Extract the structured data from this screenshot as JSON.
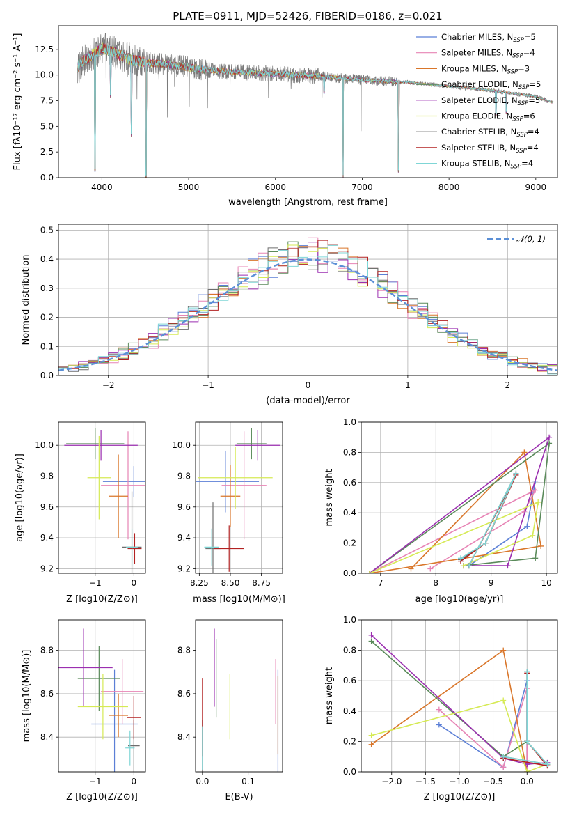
{
  "chart_data": [
    {
      "id": "spectrum",
      "type": "line",
      "title": "PLATE=0911, MJD=52426, FIBERID=0186, z=0.021",
      "xlabel": "wavelength [Angstrom, rest frame]",
      "ylabel": "Flux [fλ10⁻¹⁷ erg cm⁻² s⁻¹ A⁻¹]",
      "xlim": [
        3500,
        9250
      ],
      "ylim": [
        0,
        14.8
      ],
      "xticks": [
        "4000",
        "5000",
        "6000",
        "7000",
        "8000",
        "9000"
      ],
      "yticks": [
        "0.0",
        "2.5",
        "5.0",
        "7.5",
        "10.0",
        "12.5"
      ],
      "legend_position": "top-right",
      "continuum": [
        [
          3720,
          10.8
        ],
        [
          3800,
          11.5
        ],
        [
          3900,
          12.0
        ],
        [
          4000,
          12.6
        ],
        [
          4100,
          12.4
        ],
        [
          4300,
          11.6
        ],
        [
          4500,
          11.2
        ],
        [
          4800,
          11.0
        ],
        [
          5100,
          10.6
        ],
        [
          5500,
          10.3
        ],
        [
          6000,
          10.1
        ],
        [
          6500,
          9.9
        ],
        [
          7000,
          9.5
        ],
        [
          7500,
          9.3
        ],
        [
          8000,
          8.9
        ],
        [
          8500,
          8.5
        ],
        [
          9000,
          7.9
        ],
        [
          9200,
          7.3
        ]
      ],
      "dips": [
        [
          4510,
          0
        ],
        [
          6780,
          0
        ],
        [
          7420,
          0.5
        ],
        [
          3920,
          0.6
        ],
        [
          4340,
          4.0
        ],
        [
          4100,
          7.8
        ],
        [
          6560,
          8.2
        ],
        [
          8542,
          6.0
        ],
        [
          8662,
          6.2
        ]
      ],
      "series": [
        {
          "name": "Chabrier MILES, N_SSP=5",
          "legend": [
            "Chabrier MILES, N",
            "SSP",
            "=5"
          ],
          "color": "#5b7fd6"
        },
        {
          "name": "Salpeter MILES, N_SSP=4",
          "legend": [
            "Salpeter MILES, N",
            "SSP",
            "=4"
          ],
          "color": "#e784b5"
        },
        {
          "name": "Kroupa MILES, N_SSP=3",
          "legend": [
            "Kroupa MILES, N",
            "SSP",
            "=3"
          ],
          "color": "#d9762a"
        },
        {
          "name": "Chabrier ELODIE, N_SSP=5",
          "legend": [
            "Chabrier ELODIE, N",
            "SSP",
            "=5"
          ],
          "color": "#5a8a5a"
        },
        {
          "name": "Salpeter ELODIE, N_SSP=5",
          "legend": [
            "Salpeter ELODIE, N",
            "SSP",
            "=5"
          ],
          "color": "#9b2fb0"
        },
        {
          "name": "Kroupa ELODIE, N_SSP=6",
          "legend": [
            "Kroupa ELODIE, N",
            "SSP",
            "=6"
          ],
          "color": "#d6ea55"
        },
        {
          "name": "Chabrier STELIB, N_SSP=4",
          "legend": [
            "Chabrier STELIB, N",
            "SSP",
            "=4"
          ],
          "color": "#6e6e6e"
        },
        {
          "name": "Salpeter STELIB, N_SSP=4",
          "legend": [
            "Salpeter STELIB, N",
            "SSP",
            "=4"
          ],
          "color": "#b22222"
        },
        {
          "name": "Kroupa STELIB, N_SSP=4",
          "legend": [
            "Kroupa STELIB, N",
            "SSP",
            "=4"
          ],
          "color": "#7fd6d6"
        }
      ]
    },
    {
      "id": "residuals",
      "type": "line",
      "xlabel": "(data-model)/error",
      "ylabel": "Normed distribution",
      "xlim": [
        -2.5,
        2.5
      ],
      "ylim": [
        0,
        0.52
      ],
      "xticks": [
        "−2",
        "−1",
        "0",
        "1",
        "2"
      ],
      "yticks": [
        "0.0",
        "0.1",
        "0.2",
        "0.3",
        "0.4",
        "0.5"
      ],
      "legend": "𝒩(0, 1)",
      "legend_position": "top-right",
      "grid": true,
      "bin_width": 0.1,
      "gauss_color": "#5b8fd6"
    },
    {
      "id": "age-vs-Z",
      "type": "scatter",
      "xlabel": "Z [log10(Z/Z⊙)]",
      "ylabel": "age [log10(age/yr)]",
      "xlim": [
        -1.95,
        0.3
      ],
      "ylim": [
        9.17,
        10.15
      ],
      "xticks": [
        "−1",
        "0"
      ],
      "yticks": [
        "9.2",
        "9.4",
        "9.6",
        "9.8",
        "10.0"
      ],
      "grid": true,
      "points": [
        {
          "x": 0.0,
          "y": 9.765,
          "xerr": 0.8,
          "yerr": 0.1,
          "c": 0
        },
        {
          "x": -0.15,
          "y": 9.74,
          "xerr": 0.7,
          "yerr": 0.35,
          "c": 1
        },
        {
          "x": -0.4,
          "y": 9.67,
          "xerr": 0.25,
          "yerr": 0.27,
          "c": 2
        },
        {
          "x": -1.0,
          "y": 10.01,
          "xerr": 0.75,
          "yerr": 0.1,
          "c": 3
        },
        {
          "x": -0.85,
          "y": 10.0,
          "xerr": 0.95,
          "yerr": 0.1,
          "c": 4
        },
        {
          "x": -0.9,
          "y": 9.79,
          "xerr": 0.3,
          "yerr": 0.27,
          "c": 5
        },
        {
          "x": -0.05,
          "y": 9.34,
          "xerr": 0.25,
          "yerr": 0.36,
          "c": 6
        },
        {
          "x": 0.02,
          "y": 9.33,
          "xerr": 0.18,
          "yerr": 0.1,
          "c": 7
        },
        {
          "x": -0.05,
          "y": 9.34,
          "xerr": 0.15,
          "yerr": 0.12,
          "c": 8
        }
      ]
    },
    {
      "id": "age-vs-mass",
      "type": "scatter",
      "xlabel": "mass [log10(M/M⊙)]",
      "xlim": [
        8.22,
        8.92
      ],
      "ylim": [
        9.17,
        10.15
      ],
      "xticks": [
        "8.25",
        "8.50",
        "8.75"
      ],
      "yticks": [
        "9.2",
        "9.4",
        "9.6",
        "9.8",
        "10.0"
      ],
      "grid": true,
      "points": [
        {
          "x": 8.46,
          "y": 9.765,
          "xerr": 0.27,
          "yerr": 0.2,
          "c": 0
        },
        {
          "x": 8.61,
          "y": 9.74,
          "xerr": 0.18,
          "yerr": 0.35,
          "c": 1
        },
        {
          "x": 8.5,
          "y": 9.67,
          "xerr": 0.08,
          "yerr": 0.2,
          "c": 2
        },
        {
          "x": 8.67,
          "y": 10.01,
          "xerr": 0.12,
          "yerr": 0.1,
          "c": 3
        },
        {
          "x": 8.72,
          "y": 10.0,
          "xerr": 0.18,
          "yerr": 0.1,
          "c": 4
        },
        {
          "x": 8.54,
          "y": 9.79,
          "xerr": 0.3,
          "yerr": 0.2,
          "c": 5
        },
        {
          "x": 8.36,
          "y": 9.33,
          "xerr": 0.06,
          "yerr": 0.3,
          "c": 6
        },
        {
          "x": 8.49,
          "y": 9.33,
          "xerr": 0.12,
          "yerr": 0.15,
          "c": 7
        },
        {
          "x": 8.35,
          "y": 9.34,
          "xerr": 0.06,
          "yerr": 0.12,
          "c": 8
        }
      ]
    },
    {
      "id": "weight-vs-age",
      "type": "line",
      "xlabel": "age [log10(age/yr)]",
      "ylabel": "mass weight",
      "xlim": [
        6.65,
        10.2
      ],
      "ylim": [
        0,
        1.0
      ],
      "xticks": [
        "7",
        "8",
        "9",
        "10"
      ],
      "yticks": [
        "0.0",
        "0.2",
        "0.4",
        "0.6",
        "0.8",
        "1.0"
      ],
      "grid": true,
      "series": [
        {
          "c": 0,
          "points": [
            [
              8.6,
              0.05
            ],
            [
              9.65,
              0.31
            ],
            [
              9.8,
              0.61
            ]
          ]
        },
        {
          "c": 1,
          "points": [
            [
              7.9,
              0.03
            ],
            [
              9.6,
              0.41
            ],
            [
              9.8,
              0.55
            ],
            [
              6.8,
              0.0
            ]
          ]
        },
        {
          "c": 2,
          "points": [
            [
              7.55,
              0.03
            ],
            [
              9.6,
              0.8
            ],
            [
              9.9,
              0.18
            ],
            [
              6.8,
              0.0
            ]
          ]
        },
        {
          "c": 3,
          "points": [
            [
              8.5,
              0.05
            ],
            [
              9.8,
              0.1
            ],
            [
              10.05,
              0.86
            ],
            [
              6.8,
              0.0
            ]
          ]
        },
        {
          "c": 4,
          "points": [
            [
              8.5,
              0.05
            ],
            [
              9.3,
              0.05
            ],
            [
              10.05,
              0.9
            ],
            [
              6.8,
              0.0
            ]
          ]
        },
        {
          "c": 5,
          "points": [
            [
              8.5,
              0.05
            ],
            [
              9.75,
              0.25
            ],
            [
              9.85,
              0.47
            ],
            [
              6.8,
              0.0
            ]
          ]
        },
        {
          "c": 6,
          "points": [
            [
              8.45,
              0.09
            ],
            [
              8.9,
              0.2
            ],
            [
              9.45,
              0.66
            ],
            [
              8.6,
              0.05
            ]
          ]
        },
        {
          "c": 7,
          "points": [
            [
              8.45,
              0.08
            ],
            [
              8.9,
              0.2
            ],
            [
              9.45,
              0.65
            ],
            [
              8.6,
              0.05
            ]
          ]
        },
        {
          "c": 8,
          "points": [
            [
              8.45,
              0.1
            ],
            [
              8.9,
              0.2
            ],
            [
              9.45,
              0.66
            ],
            [
              8.6,
              0.05
            ]
          ]
        }
      ]
    },
    {
      "id": "mass-vs-Z",
      "type": "scatter",
      "xlabel": "Z [log10(Z/Z⊙)]",
      "ylabel": "mass [log10(M/M⊙)]",
      "xlim": [
        -1.95,
        0.3
      ],
      "ylim": [
        8.24,
        8.94
      ],
      "xticks": [
        "−1",
        "0"
      ],
      "yticks": [
        "8.4",
        "8.6",
        "8.8"
      ],
      "grid": true,
      "points": [
        {
          "x": -0.5,
          "y": 8.46,
          "xerr": 0.6,
          "yerr": 0.25,
          "c": 0
        },
        {
          "x": -0.3,
          "y": 8.61,
          "xerr": 0.55,
          "yerr": 0.15,
          "c": 1
        },
        {
          "x": -0.4,
          "y": 8.5,
          "xerr": 0.25,
          "yerr": 0.1,
          "c": 2
        },
        {
          "x": -0.9,
          "y": 8.67,
          "xerr": 0.55,
          "yerr": 0.15,
          "c": 3
        },
        {
          "x": -1.3,
          "y": 8.72,
          "xerr": 0.75,
          "yerr": 0.18,
          "c": 4
        },
        {
          "x": -0.8,
          "y": 8.54,
          "xerr": 0.65,
          "yerr": 0.15,
          "c": 5
        },
        {
          "x": 0.0,
          "y": 8.36,
          "xerr": 0.15,
          "yerr": 0.12,
          "c": 6
        },
        {
          "x": 0.0,
          "y": 8.49,
          "xerr": 0.18,
          "yerr": 0.1,
          "c": 7
        },
        {
          "x": -0.1,
          "y": 8.35,
          "xerr": 0.12,
          "yerr": 0.08,
          "c": 8
        }
      ]
    },
    {
      "id": "mass-vs-EBV",
      "type": "scatter",
      "xlabel": "E(B-V)",
      "xlim": [
        -0.015,
        0.175
      ],
      "ylim": [
        8.24,
        8.94
      ],
      "xticks": [
        "0.0",
        "0.1"
      ],
      "yticks": [
        "8.4",
        "8.6",
        "8.8"
      ],
      "grid": false,
      "points": [
        {
          "x": 0.165,
          "y": 8.46,
          "yerr": 0.25,
          "c": 0
        },
        {
          "x": 0.16,
          "y": 8.61,
          "yerr": 0.15,
          "c": 1
        },
        {
          "x": 0.165,
          "y": 8.5,
          "yerr": 0.18,
          "c": 2
        },
        {
          "x": 0.03,
          "y": 8.67,
          "yerr": 0.18,
          "c": 3
        },
        {
          "x": 0.026,
          "y": 8.72,
          "yerr": 0.18,
          "c": 4
        },
        {
          "x": 0.06,
          "y": 8.54,
          "yerr": 0.15,
          "c": 5
        },
        {
          "x": 0.0,
          "y": 8.36,
          "yerr": 0.12,
          "c": 6
        },
        {
          "x": 0.0,
          "y": 8.49,
          "yerr": 0.18,
          "c": 7
        },
        {
          "x": 0.0,
          "y": 8.35,
          "yerr": 0.1,
          "c": 8
        }
      ]
    },
    {
      "id": "weight-vs-Z",
      "type": "line",
      "xlabel": "Z [log10(Z/Z⊙)]",
      "ylabel": "mass weight",
      "xlim": [
        -2.45,
        0.45
      ],
      "ylim": [
        0,
        1.0
      ],
      "xticks": [
        "−2.0",
        "−1.5",
        "−1.0",
        "−0.5",
        "0.0"
      ],
      "yticks": [
        "0.0",
        "0.2",
        "0.4",
        "0.6",
        "0.8",
        "1.0"
      ],
      "grid": true,
      "series": [
        {
          "c": 0,
          "points": [
            [
              -1.3,
              0.31
            ],
            [
              -0.35,
              0.03
            ],
            [
              0.0,
              0.6
            ],
            [
              0.0,
              0.05
            ]
          ]
        },
        {
          "c": 1,
          "points": [
            [
              -1.3,
              0.41
            ],
            [
              -0.35,
              0.03
            ],
            [
              0.0,
              0.55
            ],
            [
              0.0,
              0.0
            ]
          ]
        },
        {
          "c": 2,
          "points": [
            [
              -2.3,
              0.18
            ],
            [
              -0.35,
              0.8
            ],
            [
              0.0,
              0.0
            ]
          ]
        },
        {
          "c": 3,
          "points": [
            [
              -2.3,
              0.86
            ],
            [
              -0.35,
              0.1
            ],
            [
              0.0,
              0.2
            ],
            [
              0.3,
              0.05
            ]
          ]
        },
        {
          "c": 4,
          "points": [
            [
              -2.3,
              0.9
            ],
            [
              -0.35,
              0.09
            ],
            [
              0.0,
              0.05
            ],
            [
              0.3,
              0.06
            ]
          ]
        },
        {
          "c": 5,
          "points": [
            [
              -2.3,
              0.24
            ],
            [
              -0.35,
              0.47
            ],
            [
              0.0,
              0.0
            ],
            [
              0.3,
              0.05
            ]
          ]
        },
        {
          "c": 6,
          "points": [
            [
              0.0,
              0.66
            ],
            [
              0.0,
              0.2
            ],
            [
              0.3,
              0.05
            ],
            [
              -0.35,
              0.1
            ]
          ]
        },
        {
          "c": 7,
          "points": [
            [
              0.0,
              0.65
            ],
            [
              0.0,
              0.2
            ],
            [
              0.3,
              0.04
            ],
            [
              -0.35,
              0.09
            ]
          ]
        },
        {
          "c": 8,
          "points": [
            [
              0.0,
              0.66
            ],
            [
              0.0,
              0.2
            ],
            [
              0.3,
              0.05
            ],
            [
              -0.35,
              0.1
            ]
          ]
        }
      ]
    }
  ]
}
